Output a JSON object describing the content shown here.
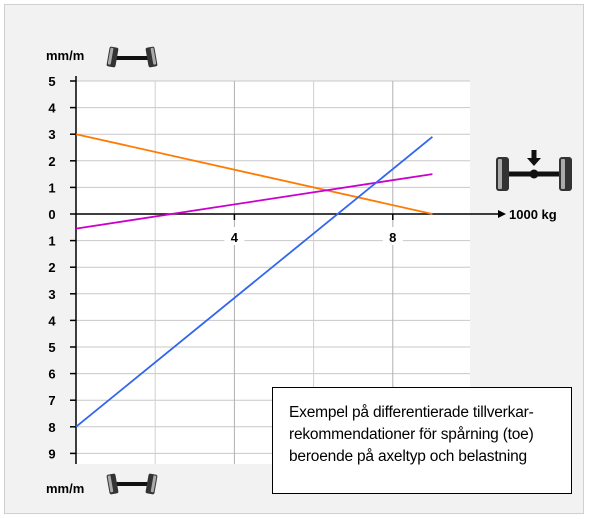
{
  "chart_data": {
    "type": "line",
    "y_label_top": "mm/m",
    "y_label_bottom": "mm/m",
    "x_label": "1000 kg",
    "y_tick_labels": [
      "5",
      "4",
      "3",
      "2",
      "1",
      "0",
      "1",
      "2",
      "3",
      "4",
      "5",
      "6",
      "7",
      "8",
      "9"
    ],
    "y_ticks": [
      5,
      4,
      3,
      2,
      1,
      0,
      -1,
      -2,
      -3,
      -4,
      -5,
      -6,
      -7,
      -8,
      -9
    ],
    "x_tick_labels": [
      "4",
      "8"
    ],
    "x_ticks": [
      4,
      8
    ],
    "x_range": [
      0,
      10
    ],
    "y_range": [
      -9.5,
      5.5
    ],
    "grid": true,
    "series": [
      {
        "color": "#ff7a00",
        "x": [
          0,
          9
        ],
        "y": [
          3,
          0
        ]
      },
      {
        "color": "#cc00cc",
        "x": [
          0,
          9
        ],
        "y": [
          -0.55,
          1.5
        ]
      },
      {
        "color": "#3366ee",
        "x": [
          0,
          9
        ],
        "y": [
          -8,
          2.9
        ]
      }
    ],
    "icons": [
      "axle-toe-in-icon",
      "axle-load-icon",
      "axle-toe-out-icon"
    ]
  },
  "note": {
    "lines": [
      "Exempel på differentierade tillverkar-",
      "rekommendationer för spårning (toe)",
      "beroende på axeltyp och belastning"
    ]
  }
}
